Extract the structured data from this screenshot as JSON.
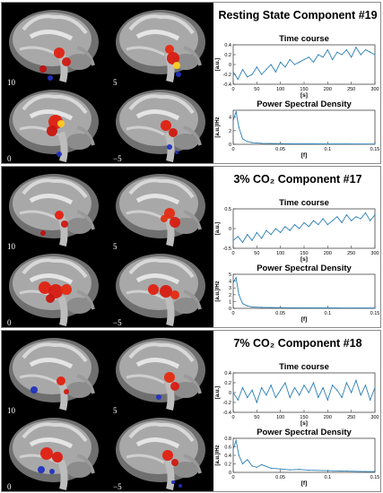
{
  "panels": [
    {
      "title": "Resting State Component #19",
      "slice_labels": [
        "10",
        "5",
        "0",
        "−5"
      ],
      "time_course": {
        "title": "Time course",
        "ylabel": "[a.u.]",
        "xlabel": "[s]",
        "xlim": [
          0,
          300
        ],
        "ylim": [
          -0.4,
          0.4
        ],
        "xticks": [
          "0",
          "50",
          "100",
          "150",
          "200",
          "250",
          "300"
        ],
        "yticks": [
          "0.4",
          "0.2",
          "0",
          "-0.2",
          "-0.4"
        ]
      },
      "psd": {
        "title": "Power Spectral Density",
        "ylabel": "[a.u.]/Hz",
        "xlabel": "[f]",
        "xlim": [
          0,
          0.15
        ],
        "ylim": [
          0,
          5
        ],
        "xticks": [
          "0",
          "0.05",
          "0.1",
          "0.15"
        ],
        "yticks": [
          "4",
          "2",
          "0"
        ]
      }
    },
    {
      "title": "3% CO₂ Component #17",
      "slice_labels": [
        "10",
        "5",
        "0",
        "−5"
      ],
      "time_course": {
        "title": "Time course",
        "ylabel": "[a.u.]",
        "xlabel": "[s]",
        "xlim": [
          0,
          300
        ],
        "ylim": [
          -0.5,
          0.5
        ],
        "xticks": [
          "0",
          "50",
          "100",
          "150",
          "200",
          "250",
          "300"
        ],
        "yticks": [
          "0.5",
          "0",
          "-0.5"
        ]
      },
      "psd": {
        "title": "Power Spectral Density",
        "ylabel": "[a.u.]/Hz",
        "xlabel": "[f]",
        "xlim": [
          0,
          0.15
        ],
        "ylim": [
          0,
          5
        ],
        "xticks": [
          "0",
          "0.05",
          "0.1",
          "0.15"
        ],
        "yticks": [
          "5",
          "4",
          "3",
          "2",
          "1",
          "0"
        ]
      }
    },
    {
      "title": "7% CO₂ Component #18",
      "slice_labels": [
        "10",
        "5",
        "0",
        "−5"
      ],
      "time_course": {
        "title": "Time course",
        "ylabel": "[a.u.]",
        "xlabel": "[s]",
        "xlim": [
          0,
          300
        ],
        "ylim": [
          -0.4,
          0.4
        ],
        "xticks": [
          "0",
          "50",
          "100",
          "150",
          "200",
          "250",
          "300"
        ],
        "yticks": [
          "0.4",
          "0.2",
          "0",
          "-0.2",
          "-0.4"
        ]
      },
      "psd": {
        "title": "Power Spectral Density",
        "ylabel": "[a.u.]/Hz",
        "xlabel": "[f]",
        "xlim": [
          0,
          0.15
        ],
        "ylim": [
          0,
          0.8
        ],
        "xticks": [
          "0",
          "0.05",
          "0.1",
          "0.15"
        ],
        "yticks": [
          "0.8",
          "0.6",
          "0.4",
          "0.2",
          "0"
        ]
      }
    }
  ],
  "chart_data": [
    {
      "type": "line",
      "title": "Time course",
      "panel": "Resting State Component #19",
      "xlabel": "[s]",
      "ylabel": "[a.u.]",
      "xlim": [
        0,
        300
      ],
      "ylim": [
        -0.4,
        0.4
      ],
      "series": [
        {
          "x": [
            0,
            10,
            20,
            30,
            40,
            50,
            60,
            70,
            80,
            90,
            100,
            110,
            120,
            130,
            140,
            150,
            160,
            170,
            180,
            190,
            200,
            210,
            220,
            230,
            240,
            250,
            260,
            270,
            280,
            290,
            300
          ],
          "values": [
            -0.15,
            -0.3,
            -0.1,
            -0.25,
            -0.2,
            -0.05,
            -0.2,
            -0.1,
            0.0,
            -0.15,
            0.05,
            -0.05,
            0.1,
            0.0,
            0.05,
            0.1,
            0.15,
            0.05,
            0.2,
            0.15,
            0.3,
            0.1,
            0.25,
            0.2,
            0.3,
            0.15,
            0.35,
            0.2,
            0.3,
            0.25,
            0.2
          ]
        }
      ]
    },
    {
      "type": "line",
      "title": "Power Spectral Density",
      "panel": "Resting State Component #19",
      "xlabel": "[f]",
      "ylabel": "[a.u.]/Hz",
      "xlim": [
        0,
        0.15
      ],
      "ylim": [
        0,
        5
      ],
      "series": [
        {
          "x": [
            0,
            0.003,
            0.006,
            0.01,
            0.015,
            0.02,
            0.03,
            0.04,
            0.05,
            0.06,
            0.08,
            0.1,
            0.12,
            0.15
          ],
          "values": [
            3.5,
            4.8,
            2.5,
            0.8,
            0.4,
            0.25,
            0.15,
            0.12,
            0.1,
            0.08,
            0.06,
            0.05,
            0.05,
            0.04
          ]
        }
      ]
    },
    {
      "type": "line",
      "title": "Time course",
      "panel": "3% CO₂ Component #17",
      "xlabel": "[s]",
      "ylabel": "[a.u.]",
      "xlim": [
        0,
        300
      ],
      "ylim": [
        -0.5,
        0.5
      ],
      "series": [
        {
          "x": [
            0,
            10,
            20,
            30,
            40,
            50,
            60,
            70,
            80,
            90,
            100,
            110,
            120,
            130,
            140,
            150,
            160,
            170,
            180,
            190,
            200,
            210,
            220,
            230,
            240,
            250,
            260,
            270,
            280,
            290,
            300
          ],
          "values": [
            -0.3,
            -0.2,
            -0.35,
            -0.15,
            -0.3,
            -0.1,
            -0.25,
            -0.05,
            -0.15,
            0.0,
            -0.1,
            0.05,
            -0.05,
            0.1,
            0.0,
            0.15,
            0.05,
            0.2,
            0.1,
            0.25,
            0.1,
            0.2,
            0.3,
            0.15,
            0.35,
            0.2,
            0.3,
            0.25,
            0.4,
            0.2,
            0.35
          ]
        }
      ]
    },
    {
      "type": "line",
      "title": "Power Spectral Density",
      "panel": "3% CO₂ Component #17",
      "xlabel": "[f]",
      "ylabel": "[a.u.]/Hz",
      "xlim": [
        0,
        0.15
      ],
      "ylim": [
        0,
        5
      ],
      "series": [
        {
          "x": [
            0,
            0.003,
            0.006,
            0.01,
            0.015,
            0.02,
            0.03,
            0.04,
            0.05,
            0.06,
            0.08,
            0.1,
            0.12,
            0.15
          ],
          "values": [
            3.8,
            4.5,
            2.0,
            0.7,
            0.35,
            0.2,
            0.15,
            0.12,
            0.1,
            0.08,
            0.07,
            0.06,
            0.05,
            0.05
          ]
        }
      ]
    },
    {
      "type": "line",
      "title": "Time course",
      "panel": "7% CO₂ Component #18",
      "xlabel": "[s]",
      "ylabel": "[a.u.]",
      "xlim": [
        0,
        300
      ],
      "ylim": [
        -0.4,
        0.4
      ],
      "series": [
        {
          "x": [
            0,
            10,
            20,
            30,
            40,
            50,
            60,
            70,
            80,
            90,
            100,
            110,
            120,
            130,
            140,
            150,
            160,
            170,
            180,
            190,
            200,
            210,
            220,
            230,
            240,
            250,
            260,
            270,
            280,
            290,
            300
          ],
          "values": [
            0.0,
            -0.15,
            0.1,
            -0.1,
            0.05,
            -0.2,
            0.1,
            -0.05,
            0.15,
            -0.1,
            0.05,
            0.2,
            -0.1,
            0.1,
            -0.05,
            0.15,
            0.0,
            0.2,
            -0.1,
            0.1,
            -0.15,
            0.15,
            0.05,
            -0.1,
            0.2,
            0.0,
            0.25,
            -0.05,
            0.15,
            -0.15,
            0.1
          ]
        }
      ]
    },
    {
      "type": "line",
      "title": "Power Spectral Density",
      "panel": "7% CO₂ Component #18",
      "xlabel": "[f]",
      "ylabel": "[a.u.]/Hz",
      "xlim": [
        0,
        0.15
      ],
      "ylim": [
        0,
        0.8
      ],
      "series": [
        {
          "x": [
            0,
            0.003,
            0.006,
            0.01,
            0.015,
            0.02,
            0.025,
            0.03,
            0.04,
            0.05,
            0.06,
            0.07,
            0.08,
            0.1,
            0.12,
            0.14,
            0.15
          ],
          "values": [
            0.55,
            0.75,
            0.4,
            0.2,
            0.3,
            0.15,
            0.12,
            0.18,
            0.1,
            0.08,
            0.06,
            0.07,
            0.05,
            0.04,
            0.03,
            0.02,
            0.02
          ]
        }
      ]
    }
  ]
}
